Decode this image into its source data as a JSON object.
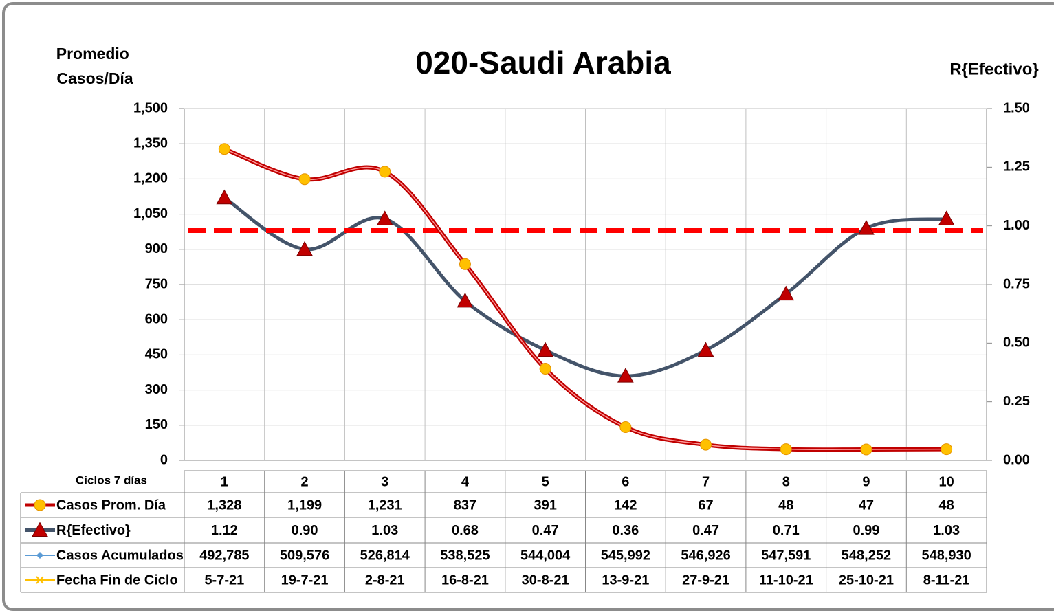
{
  "chart_data": {
    "type": "line",
    "title": "020-Saudi Arabia",
    "y_label": "Promedio Casos/Día",
    "y2_label": "R{Efectivo}",
    "x_label": "Ciclos 7 días",
    "categories": [
      "1",
      "2",
      "3",
      "4",
      "5",
      "6",
      "7",
      "8",
      "9",
      "10"
    ],
    "series": [
      {
        "name": "Casos Prom. Día",
        "color": "#c00000",
        "marker_color": "#ffc000",
        "values": [
          1328,
          1199,
          1231,
          837,
          391,
          142,
          67,
          48,
          47,
          48
        ],
        "value_labels": [
          "1,328",
          "1,199",
          "1,231",
          "837",
          "391",
          "142",
          "67",
          "48",
          "47",
          "48"
        ]
      },
      {
        "name": "R{Efectivo}",
        "color": "#44546a",
        "marker_color": "#c00000",
        "axis": "y2",
        "values": [
          1.12,
          0.9,
          1.03,
          0.68,
          0.47,
          0.36,
          0.47,
          0.71,
          0.99,
          1.03
        ],
        "value_labels": [
          "1.12",
          "0.90",
          "1.03",
          "0.68",
          "0.47",
          "0.36",
          "0.47",
          "0.71",
          "0.99",
          "1.03"
        ]
      },
      {
        "name": "Casos Acumulados",
        "color": "#5b9bd5",
        "values": [
          492785,
          509576,
          526814,
          538525,
          544004,
          545992,
          546926,
          547591,
          548252,
          548930
        ],
        "value_labels": [
          "492,785",
          "509,576",
          "526,814",
          "538,525",
          "544,004",
          "545,992",
          "546,926",
          "547,591",
          "548,252",
          "548,930"
        ]
      },
      {
        "name": "Fecha Fin de Ciclo",
        "color": "#ffc000",
        "labels": [
          "5-7-21",
          "19-7-21",
          "2-8-21",
          "16-8-21",
          "30-8-21",
          "13-9-21",
          "27-9-21",
          "11-10-21",
          "25-10-21",
          "8-11-21"
        ]
      }
    ],
    "reference_line": {
      "axis": "y2",
      "value": 0.98,
      "color": "#ff0000"
    },
    "ylim": [
      0,
      1500
    ],
    "yticks": [
      0,
      150,
      300,
      450,
      600,
      750,
      900,
      {
        "value": 1050,
        "label": "1,050"
      },
      {
        "value": 1200,
        "label": "1,200"
      },
      {
        "value": 1350,
        "label": "1,350"
      },
      {
        "value": 1500,
        "label": "1,500"
      }
    ],
    "y2lim": [
      0,
      1.5
    ],
    "y2ticks": [
      {
        "value": 0,
        "label": "0.00"
      },
      {
        "value": 0.25,
        "label": "0.25"
      },
      {
        "value": 0.5,
        "label": "0.50"
      },
      {
        "value": 0.75,
        "label": "0.75"
      },
      {
        "value": 1,
        "label": "1.00"
      },
      {
        "value": 1.25,
        "label": "1.25"
      },
      {
        "value": 1.5,
        "label": "1.50"
      }
    ],
    "grid": true
  }
}
